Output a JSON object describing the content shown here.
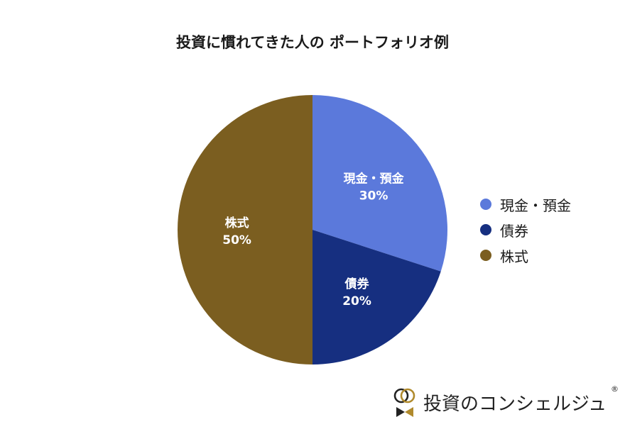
{
  "title": "投資に慣れてきた人の ポートフォリオ例",
  "chart_data": {
    "type": "pie",
    "title": "投資に慣れてきた人の ポートフォリオ例",
    "legend_position": "right",
    "slices": [
      {
        "label": "現金・預金",
        "value": 30,
        "display": "30%",
        "color": "#5b79db"
      },
      {
        "label": "債券",
        "value": 20,
        "display": "20%",
        "color": "#162f80"
      },
      {
        "label": "株式",
        "value": 50,
        "display": "50%",
        "color": "#7b5e20"
      }
    ]
  },
  "brand": {
    "name": "投資のコンシェルジュ",
    "registered": "®",
    "logo_icon": "rings-and-bow-logo-icon"
  }
}
